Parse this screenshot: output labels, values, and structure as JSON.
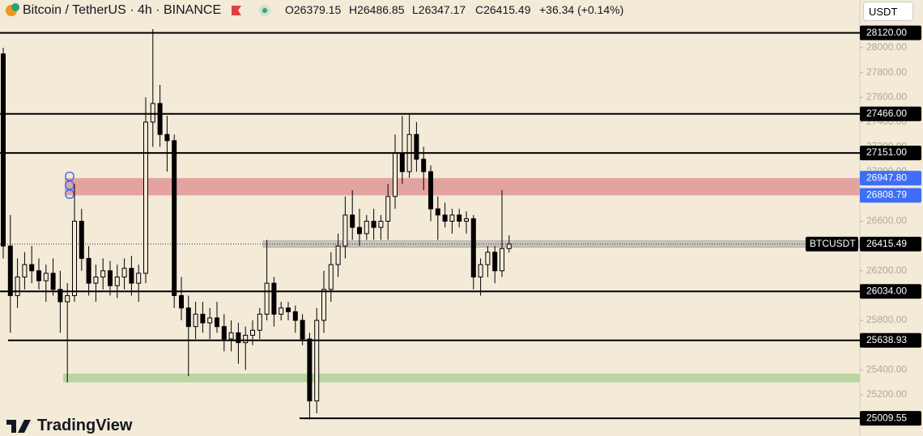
{
  "header": {
    "symbol": "Bitcoin / TetherUS · 4h · BINANCE",
    "open": "O26379.15",
    "high": "H26486.85",
    "low": "L26347.17",
    "close": "C26415.49",
    "change": "+36.34 (+0.14%)",
    "currency": "USDT"
  },
  "brand": "TradingView",
  "chart_data": {
    "type": "candlestick",
    "open": [
      27950,
      26400,
      26000,
      26150,
      26250,
      26200,
      26120,
      26180,
      26050,
      25950,
      26000,
      26600,
      26300,
      26100,
      26150,
      26200,
      26080,
      26150,
      26220,
      26100,
      26180,
      27400,
      27550,
      27300,
      27250,
      26000,
      25900,
      25750,
      25850,
      25780,
      25820,
      25750,
      25650,
      25700,
      25620,
      25680,
      25720,
      25850,
      26100,
      25850,
      25900,
      25870,
      25800,
      25650,
      25150,
      25800,
      26050,
      26250,
      26400,
      26650,
      26550,
      26500,
      26600,
      26550,
      26600,
      26800,
      27150,
      27000,
      27300,
      27100,
      27000,
      26700,
      26650,
      26600,
      26650,
      26600,
      26620,
      26150,
      26250,
      26350,
      26200,
      26379.15
    ],
    "high": [
      28000,
      26650,
      26300,
      26350,
      26400,
      26300,
      26250,
      26300,
      26200,
      26100,
      26900,
      26700,
      26400,
      26250,
      26300,
      26280,
      26250,
      26300,
      26320,
      26250,
      27600,
      28150,
      27700,
      27450,
      27300,
      26150,
      26000,
      25950,
      25950,
      25900,
      25950,
      25850,
      25800,
      25780,
      25750,
      25800,
      25900,
      26450,
      26150,
      25950,
      25950,
      25920,
      25850,
      25700,
      25900,
      26200,
      26350,
      26500,
      26800,
      26850,
      26700,
      26650,
      26700,
      26650,
      26900,
      27300,
      27450,
      27460,
      27400,
      27200,
      27050,
      26800,
      26750,
      26700,
      26700,
      26680,
      26650,
      26300,
      26400,
      26400,
      26850,
      26486.85
    ],
    "low": [
      26300,
      25700,
      25900,
      26050,
      26100,
      26050,
      25950,
      26000,
      25700,
      25300,
      25950,
      26200,
      26000,
      25950,
      26050,
      26000,
      25980,
      26050,
      26000,
      25950,
      26100,
      27200,
      27200,
      27000,
      25900,
      25800,
      25350,
      25650,
      25700,
      25650,
      25700,
      25550,
      25550,
      25450,
      25400,
      25600,
      25650,
      25800,
      25750,
      25800,
      25800,
      25700,
      25600,
      25000,
      25050,
      25700,
      25950,
      26150,
      26300,
      26450,
      26400,
      26450,
      26450,
      26450,
      26450,
      26700,
      26900,
      26950,
      27000,
      26850,
      26600,
      26450,
      26550,
      26500,
      26550,
      26500,
      26050,
      26000,
      26150,
      26100,
      26150,
      26347.17
    ],
    "close": [
      26400,
      26000,
      26150,
      26250,
      26200,
      26120,
      26180,
      26050,
      25950,
      26000,
      26600,
      26300,
      26100,
      26150,
      26200,
      26080,
      26150,
      26220,
      26100,
      26180,
      27400,
      27550,
      27300,
      27250,
      26000,
      25900,
      25750,
      25850,
      25780,
      25820,
      25750,
      25650,
      25700,
      25620,
      25680,
      25720,
      25850,
      26100,
      25850,
      25900,
      25870,
      25800,
      25650,
      25150,
      25800,
      26050,
      26250,
      26400,
      26650,
      26550,
      26500,
      26600,
      26550,
      26600,
      26800,
      27150,
      27000,
      27300,
      27100,
      27000,
      26700,
      26650,
      26600,
      26650,
      26600,
      26620,
      26150,
      26250,
      26350,
      26200,
      26379.15,
      26415.49
    ],
    "ylim": [
      24867,
      28385
    ],
    "yticks": [
      {
        "value": 25200,
        "label": "25200.00"
      },
      {
        "value": 25400,
        "label": "25400.00"
      },
      {
        "value": 25600,
        "label": "25600.00"
      },
      {
        "value": 25800,
        "label": "25800.00"
      },
      {
        "value": 26000,
        "label": "26000.00"
      },
      {
        "value": 26200,
        "label": "26200.00"
      },
      {
        "value": 26400,
        "label": "26400.00"
      },
      {
        "value": 26600,
        "label": "26600.00"
      },
      {
        "value": 26800,
        "label": "26800.00"
      },
      {
        "value": 27000,
        "label": "27000.00"
      },
      {
        "value": 27200,
        "label": "27200.00"
      },
      {
        "value": 27400,
        "label": "27400.00"
      },
      {
        "value": 27600,
        "label": "27600.00"
      },
      {
        "value": 27800,
        "label": "27800.00"
      },
      {
        "value": 28000,
        "label": "28000.00"
      }
    ],
    "levels": [
      {
        "value": 28120,
        "label": "28120.00"
      },
      {
        "value": 27466,
        "label": "27466.00"
      },
      {
        "value": 27151,
        "label": "27151.00"
      },
      {
        "value": 26034,
        "label": "26034.00"
      },
      {
        "value": 25638.93,
        "label": "25638.93"
      },
      {
        "value": 25009.55,
        "label": "25009.55"
      }
    ],
    "zones": [
      {
        "low": {
          "value": 26808.79,
          "label": "26808.79"
        },
        "high": {
          "value": 26947.8,
          "label": "26947.80"
        },
        "color": "#e3a39e",
        "label_color": "#3d6ef5"
      },
      {
        "low": 25300,
        "high": 25370,
        "color": "#b9d6a2"
      }
    ],
    "last_price": {
      "value": 26415.49,
      "label": "26415.49"
    },
    "symbol": "BTCUSDT"
  }
}
